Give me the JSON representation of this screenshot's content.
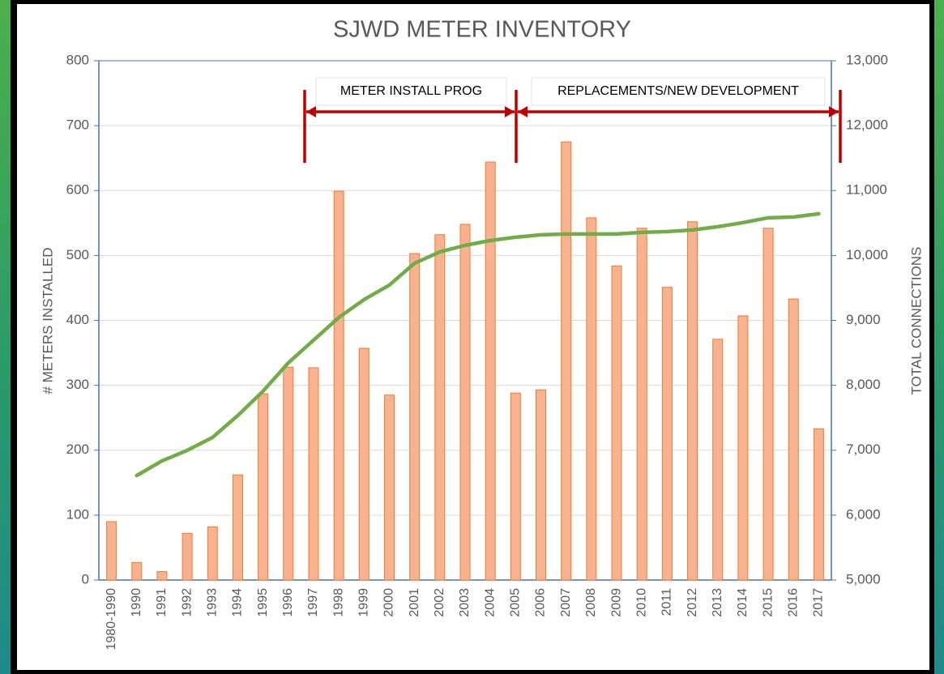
{
  "chart_data": {
    "type": "bar",
    "title": "SJWD METER INVENTORY",
    "ylabel": "# METERS INSTALLED",
    "y2label": "TOTAL CONNECTIONS",
    "categories": [
      "1980-1990",
      "1990",
      "1991",
      "1992",
      "1993",
      "1994",
      "1995",
      "1996",
      "1997",
      "1998",
      "1999",
      "2000",
      "2001",
      "2002",
      "2003",
      "2004",
      "2005",
      "2006",
      "2007",
      "2008",
      "2009",
      "2010",
      "2011",
      "2012",
      "2013",
      "2014",
      "2015",
      "2016",
      "2017"
    ],
    "series": [
      {
        "type": "bar",
        "axis": "y",
        "color": "#f8b28f",
        "stroke": "#ed7d31",
        "values": [
          90,
          27,
          13,
          72,
          82,
          162,
          287,
          328,
          327,
          599,
          357,
          285,
          503,
          532,
          548,
          644,
          288,
          293,
          675,
          558,
          484,
          542,
          451,
          552,
          371,
          407,
          542,
          433,
          233
        ]
      },
      {
        "type": "line",
        "axis": "y2",
        "color": "#70ad47",
        "values": [
          null,
          6610,
          6835,
          6998,
          7197,
          7534,
          7909,
          8346,
          8695,
          9045,
          9320,
          9544,
          9881,
          10056,
          10156,
          10231,
          10281,
          10318,
          10331,
          10331,
          10331,
          10356,
          10368,
          10393,
          10443,
          10506,
          10581,
          10593,
          10643
        ]
      }
    ],
    "ylim": [
      0,
      800
    ],
    "yticks": [
      0,
      100,
      200,
      300,
      400,
      500,
      600,
      700,
      800
    ],
    "y2lim": [
      5000,
      13000
    ],
    "y2ticks": [
      {
        "value": 5000,
        "label": "5,000"
      },
      {
        "value": 6000,
        "label": "6,000"
      },
      {
        "value": 7000,
        "label": "7,000"
      },
      {
        "value": 8000,
        "label": "8,000"
      },
      {
        "value": 9000,
        "label": "9,000"
      },
      {
        "value": 10000,
        "label": "10,000"
      },
      {
        "value": 11000,
        "label": "11,000"
      },
      {
        "value": 12000,
        "label": "12,000"
      },
      {
        "value": 13000,
        "label": "13,000"
      }
    ],
    "grid": true,
    "annotations": [
      "METER INSTALL PROG",
      "REPLACEMENTS/NEW DEVELOPMENT"
    ]
  }
}
